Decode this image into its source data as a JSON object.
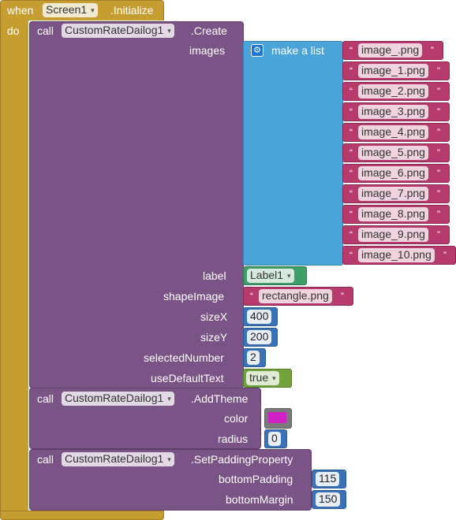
{
  "event": {
    "when": "when",
    "component": "Screen1",
    "event_name": ".Initialize",
    "do": "do"
  },
  "create_call": {
    "call": "call",
    "component": "CustomRateDailog1",
    "method": ".Create",
    "params": {
      "images": "images",
      "label": "label",
      "shapeImage": "shapeImage",
      "sizeX": "sizeX",
      "sizeY": "sizeY",
      "selectedNumber": "selectedNumber",
      "useDefaultText": "useDefaultText"
    },
    "make_list": "make a list",
    "images": [
      "image_.png",
      "image_1.png",
      "image_2.png",
      "image_3.png",
      "image_4.png",
      "image_5.png",
      "image_6.png",
      "image_7.png",
      "image_8.png",
      "image_9.png",
      "image_10.png"
    ],
    "label_value": "Label1",
    "shape_value": "rectangle.png",
    "sizeX_value": "400",
    "sizeY_value": "200",
    "selected_value": "2",
    "default_text_value": "true"
  },
  "theme_call": {
    "call": "call",
    "component": "CustomRateDailog1",
    "method": ".AddTheme",
    "params": {
      "color": "color",
      "radius": "radius"
    },
    "color_value": "#d020c8",
    "radius_value": "0"
  },
  "padding_call": {
    "call": "call",
    "component": "CustomRateDailog1",
    "method": ".SetPaddingProperty",
    "params": {
      "bottomPadding": "bottomPadding",
      "bottomMargin": "bottomMargin"
    },
    "bottomPadding_value": "115",
    "bottomMargin_value": "150"
  },
  "quote": "“",
  "quote_close": "”",
  "icons": {
    "dropdown": "▾",
    "gear": "⚙"
  }
}
